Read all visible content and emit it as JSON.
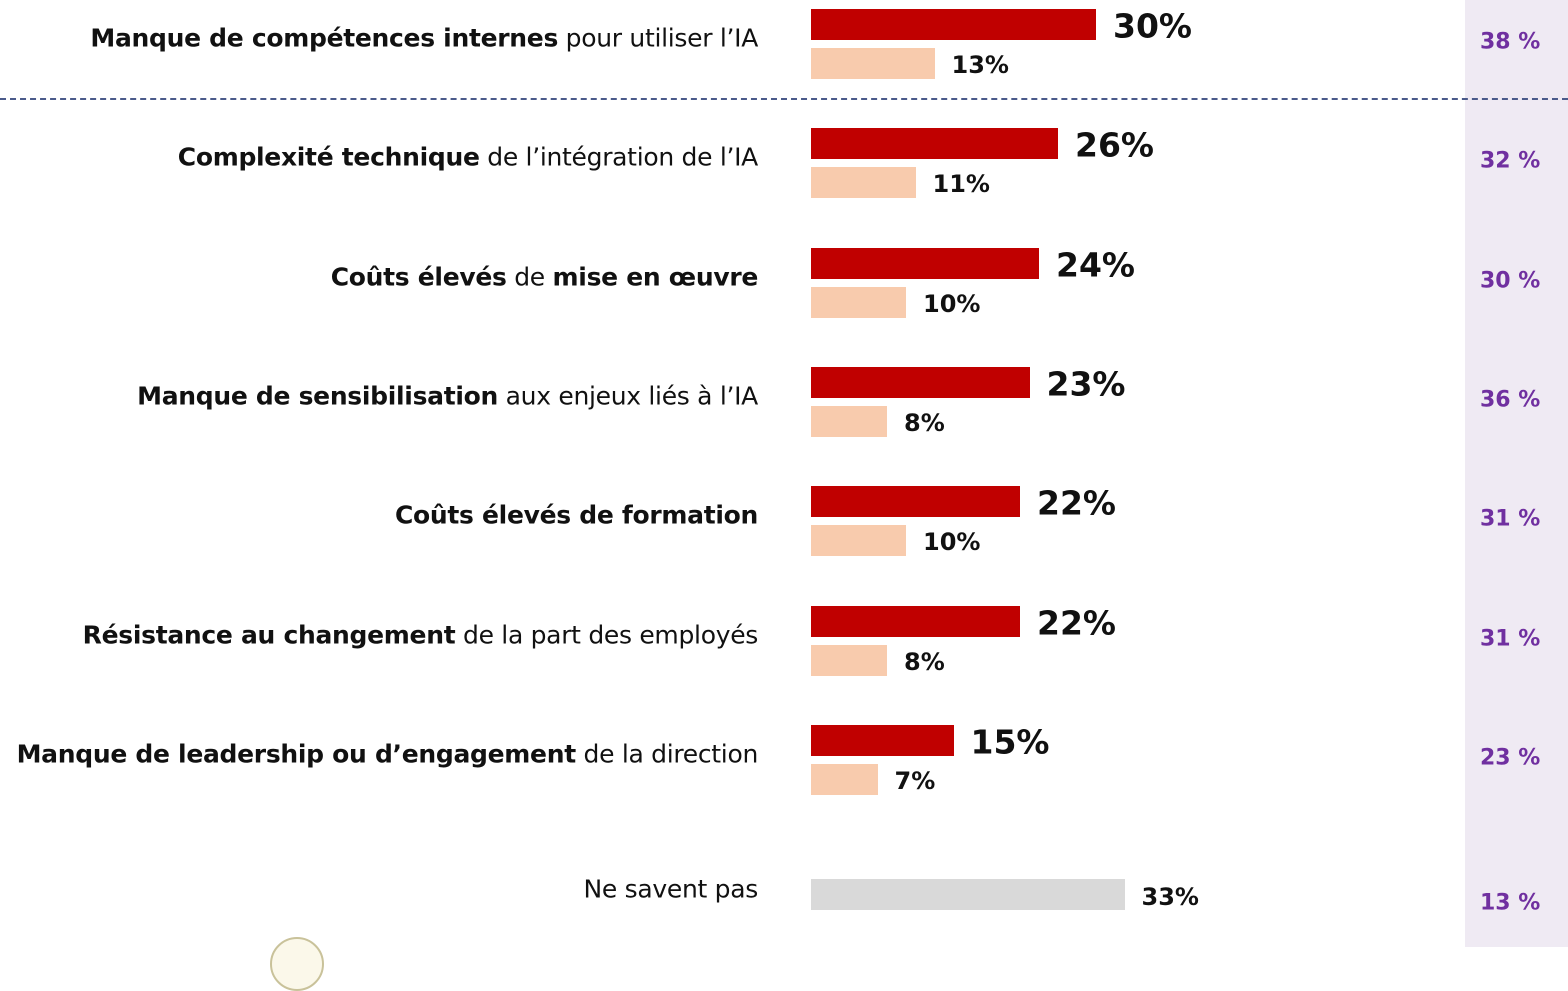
{
  "chart_data": {
    "type": "bar",
    "orientation": "horizontal",
    "colors": {
      "primary": "#c00000",
      "secondary": "#f8cbad",
      "unknown": "#d9d9d9",
      "side": "#7030a0",
      "side_bg": "#efeaf3"
    },
    "rows": [
      {
        "bold1": "Manque de compétences internes",
        "rest1": " pour utiliser l’IA",
        "bold2": "",
        "rest2": "",
        "primary": 30,
        "secondary": 13,
        "primary_label": "30%",
        "secondary_label": "13%",
        "side_label": "38 %"
      },
      {
        "bold1": "Complexité technique",
        "rest1": " de l’intégration de l’IA",
        "bold2": "",
        "rest2": "",
        "primary": 26,
        "secondary": 11,
        "primary_label": "26%",
        "secondary_label": "11%",
        "side_label": "32 %"
      },
      {
        "bold1": "Coûts élevés",
        "rest1": " de ",
        "bold2": "mise en œuvre",
        "rest2": "",
        "primary": 24,
        "secondary": 10,
        "primary_label": "24%",
        "secondary_label": "10%",
        "side_label": "30 %"
      },
      {
        "bold1": "Manque de sensibilisation",
        "rest1": " aux enjeux liés à l’IA",
        "bold2": "",
        "rest2": "",
        "primary": 23,
        "secondary": 8,
        "primary_label": "23%",
        "secondary_label": "8%",
        "side_label": "36 %"
      },
      {
        "bold1": "Coûts élevés de formation",
        "rest1": "",
        "bold2": "",
        "rest2": "",
        "primary": 22,
        "secondary": 10,
        "primary_label": "22%",
        "secondary_label": "10%",
        "side_label": "31 %"
      },
      {
        "bold1": "Résistance au changement",
        "rest1": " de la part des employés",
        "bold2": "",
        "rest2": "",
        "primary": 22,
        "secondary": 8,
        "primary_label": "22%",
        "secondary_label": "8%",
        "side_label": "31 %"
      },
      {
        "bold1": "Manque de leadership ou d’engagement",
        "rest1": " de la direction",
        "bold2": "",
        "rest2": "",
        "primary": 15,
        "secondary": 7,
        "primary_label": "15%",
        "secondary_label": "7%",
        "side_label": "23 %"
      }
    ],
    "unknown_row": {
      "label": "Ne savent pas",
      "value": 33,
      "value_label": "33%",
      "side_label": "13 %"
    }
  }
}
